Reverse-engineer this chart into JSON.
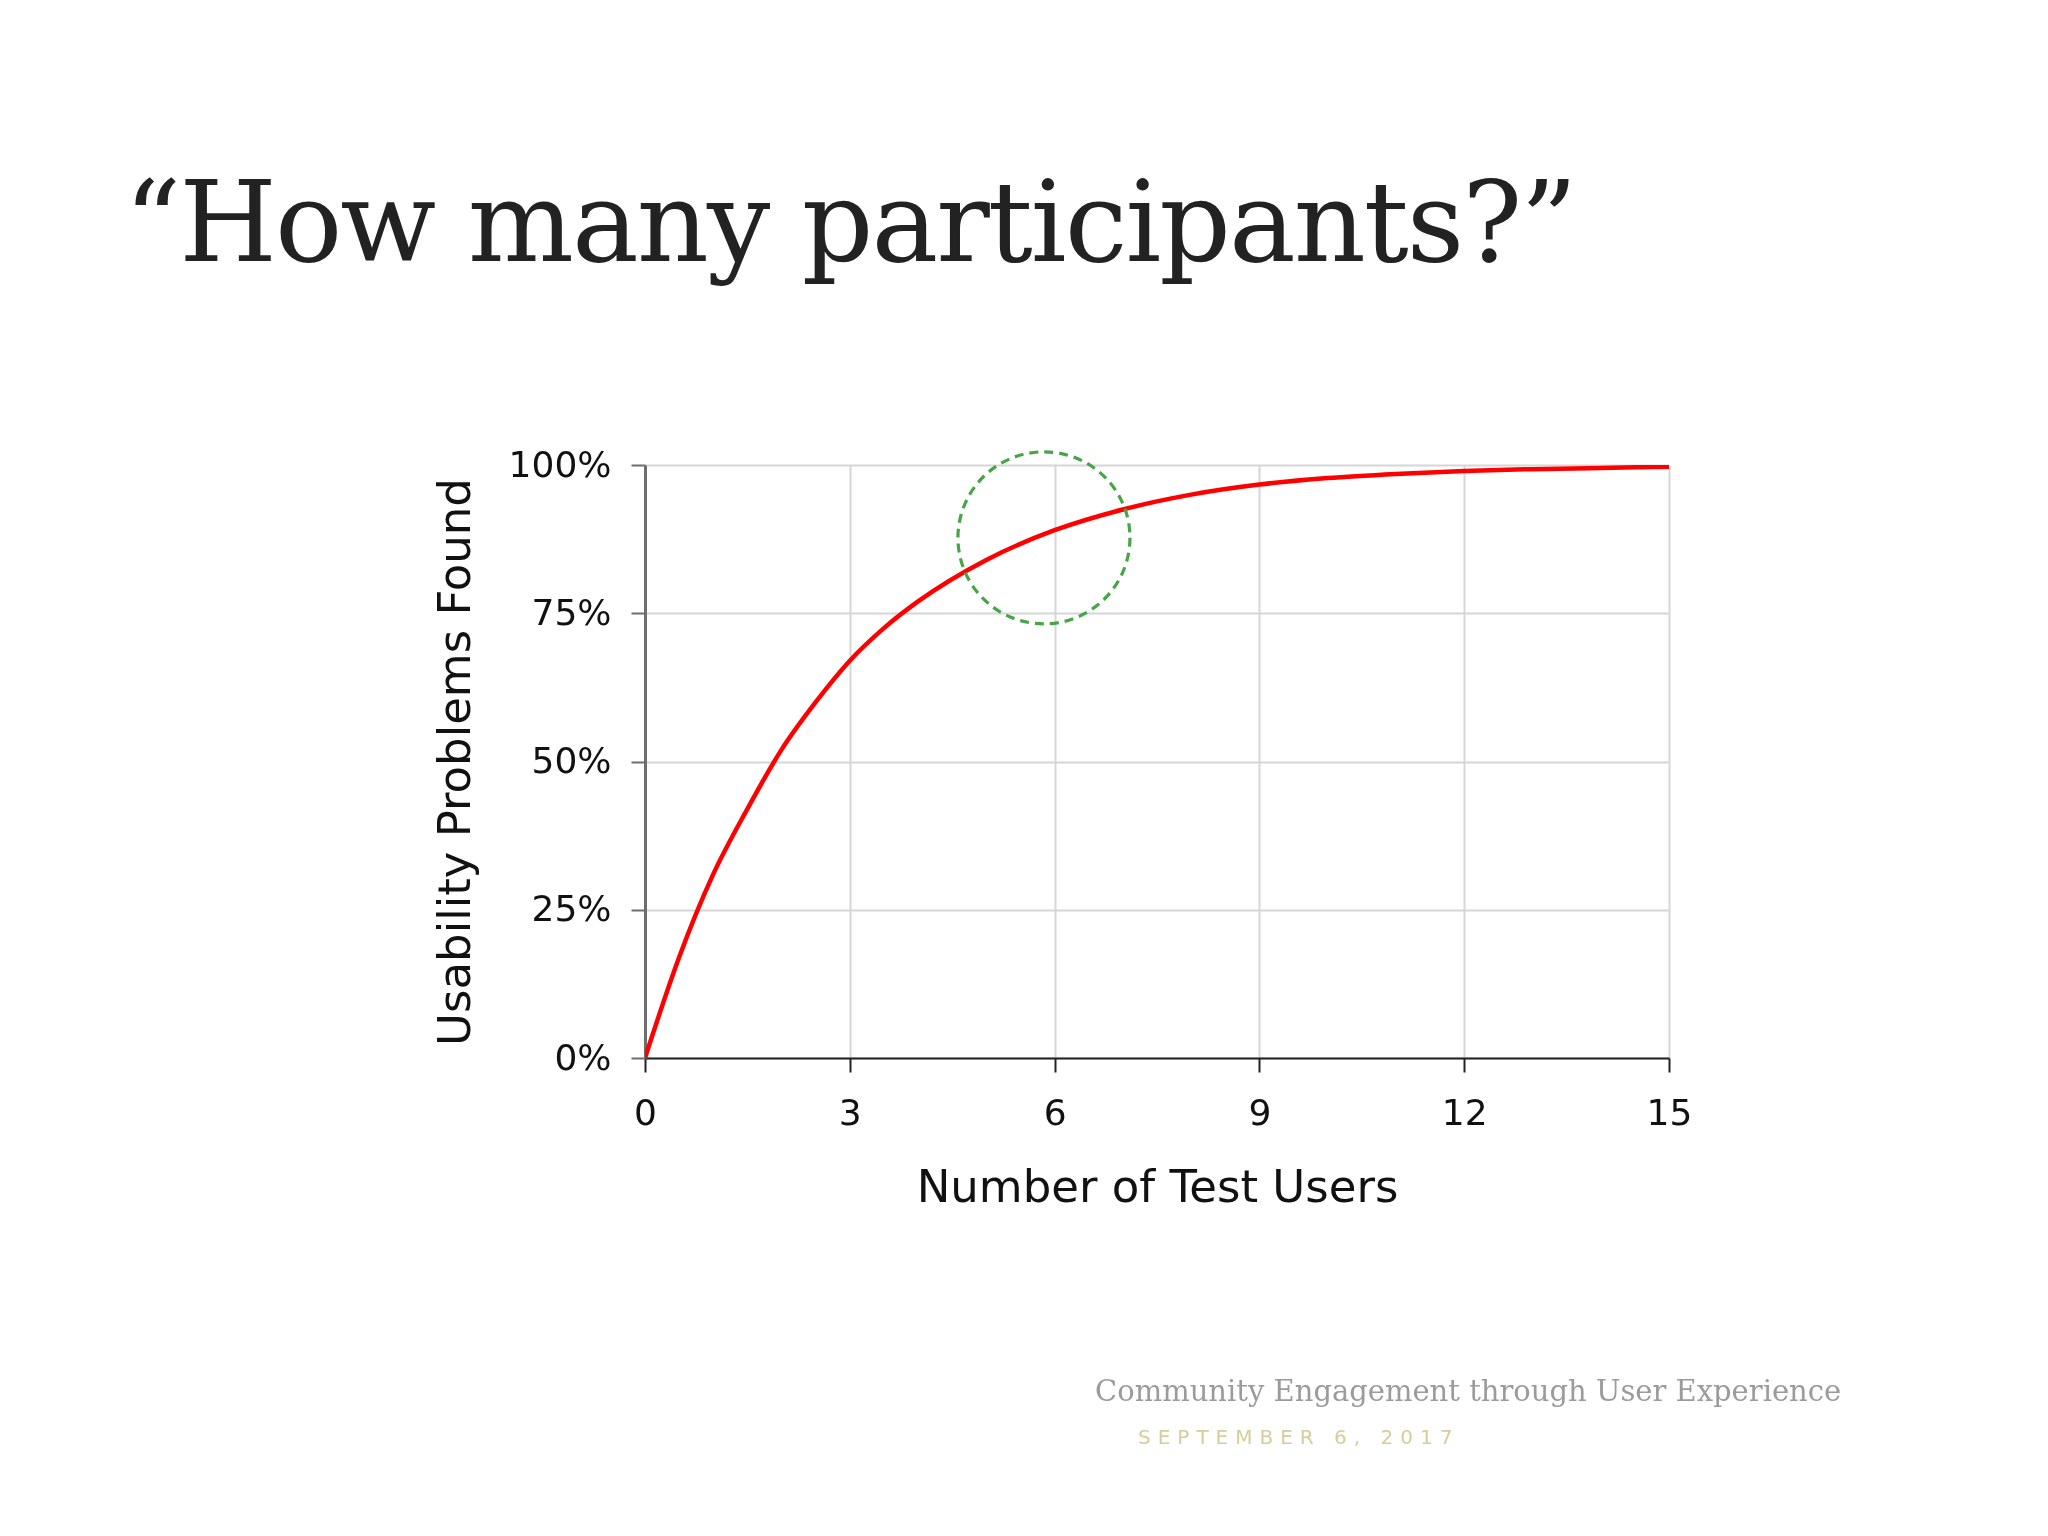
{
  "chart_data": {
    "type": "line",
    "title": "“How many participants?”",
    "xlabel": "Number of Test Users",
    "ylabel": "Usability Problems Found",
    "x": [
      0,
      0.5,
      1,
      1.5,
      2,
      2.5,
      3,
      3.5,
      4,
      5,
      6,
      7,
      8,
      9,
      10,
      11,
      12,
      13,
      14,
      15
    ],
    "series": [
      {
        "color": "#ff0000",
        "values": [
          0,
          17,
          31,
          42,
          52,
          60,
          67,
          72.5,
          77,
          84,
          89,
          92.5,
          95,
          96.7,
          97.8,
          98.5,
          99,
          99.3,
          99.5,
          99.7
        ]
      }
    ],
    "xlim": [
      0,
      15
    ],
    "ylim": [
      0,
      100
    ],
    "xticks": [
      0,
      3,
      6,
      9,
      12,
      15
    ],
    "yticks": [
      {
        "value": 0,
        "label": "0%"
      },
      {
        "value": 25,
        "label": "25%"
      },
      {
        "value": 50,
        "label": "50%"
      },
      {
        "value": 75,
        "label": "75%"
      },
      {
        "value": 100,
        "label": "100%"
      }
    ],
    "grid": true,
    "annotations": [
      "Community Engagement through User Experience",
      "SEPTEMBER 6, 2017"
    ]
  }
}
